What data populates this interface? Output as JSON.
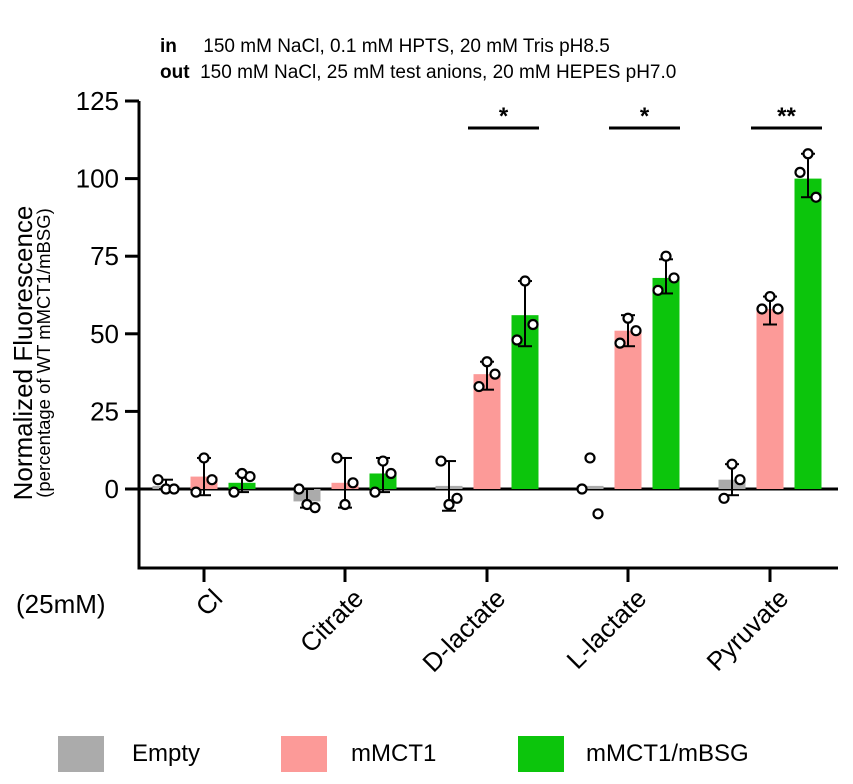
{
  "conditions": {
    "in_label": "in",
    "in_text": "150 mM NaCl, 0.1 mM HPTS, 20 mM Tris pH8.5",
    "out_label": "out",
    "out_text": "150 mM NaCl, 25 mM test anions, 20 mM HEPES pH7.0"
  },
  "chart_data": {
    "type": "bar",
    "ylabel": "Normalized Fluorescence",
    "ylabel_sub": "(percentage of WT mMCT1/mBSG)",
    "xlabel_prefix": "(25mM)",
    "ylim": [
      -25,
      125
    ],
    "yticks": [
      "0",
      "25",
      "50",
      "75",
      "100",
      "125"
    ],
    "ytick_values": [
      0,
      25,
      50,
      75,
      100,
      125
    ],
    "categories": [
      "Cl",
      "Citrate",
      "D-lactate",
      "L-lactate",
      "Pyruvate"
    ],
    "series": [
      {
        "name": "Empty",
        "color": "#ababab",
        "values": [
          1,
          -4,
          1,
          1,
          3
        ],
        "errors": [
          [
            0,
            3
          ],
          [
            -6,
            0
          ],
          [
            -7,
            9
          ],
          [
            1,
            1
          ],
          [
            -2,
            8
          ]
        ],
        "points": [
          [
            0,
            3,
            0
          ],
          [
            -5,
            0,
            -6
          ],
          [
            -5,
            9,
            -3
          ],
          [
            10,
            0,
            -8
          ],
          [
            8,
            -3,
            3
          ]
        ]
      },
      {
        "name": "mMCT1",
        "color": "#fc9a98",
        "values": [
          4,
          2,
          37,
          51,
          58
        ],
        "errors": [
          [
            -2,
            10
          ],
          [
            -6,
            10
          ],
          [
            32,
            41
          ],
          [
            46,
            56
          ],
          [
            53,
            62
          ]
        ],
        "points": [
          [
            10,
            -1,
            3
          ],
          [
            -5,
            10,
            2
          ],
          [
            41,
            33,
            37
          ],
          [
            55,
            47,
            51
          ],
          [
            62,
            58,
            58
          ]
        ]
      },
      {
        "name": "mMCT1/mBSG",
        "color": "#0cc50c",
        "values": [
          2,
          5,
          56,
          68,
          100
        ],
        "errors": [
          [
            -1,
            5
          ],
          [
            -1,
            10
          ],
          [
            46,
            67
          ],
          [
            63,
            74
          ],
          [
            94,
            108
          ]
        ],
        "points": [
          [
            5,
            -1,
            4
          ],
          [
            9,
            -1,
            5
          ],
          [
            67,
            48,
            53
          ],
          [
            75,
            64,
            68
          ],
          [
            108,
            102,
            94
          ]
        ]
      }
    ],
    "significance": [
      {
        "category": "D-lactate",
        "label": "*"
      },
      {
        "category": "L-lactate",
        "label": "*"
      },
      {
        "category": "Pyruvate",
        "label": "**"
      }
    ],
    "legend_position": "bottom"
  }
}
